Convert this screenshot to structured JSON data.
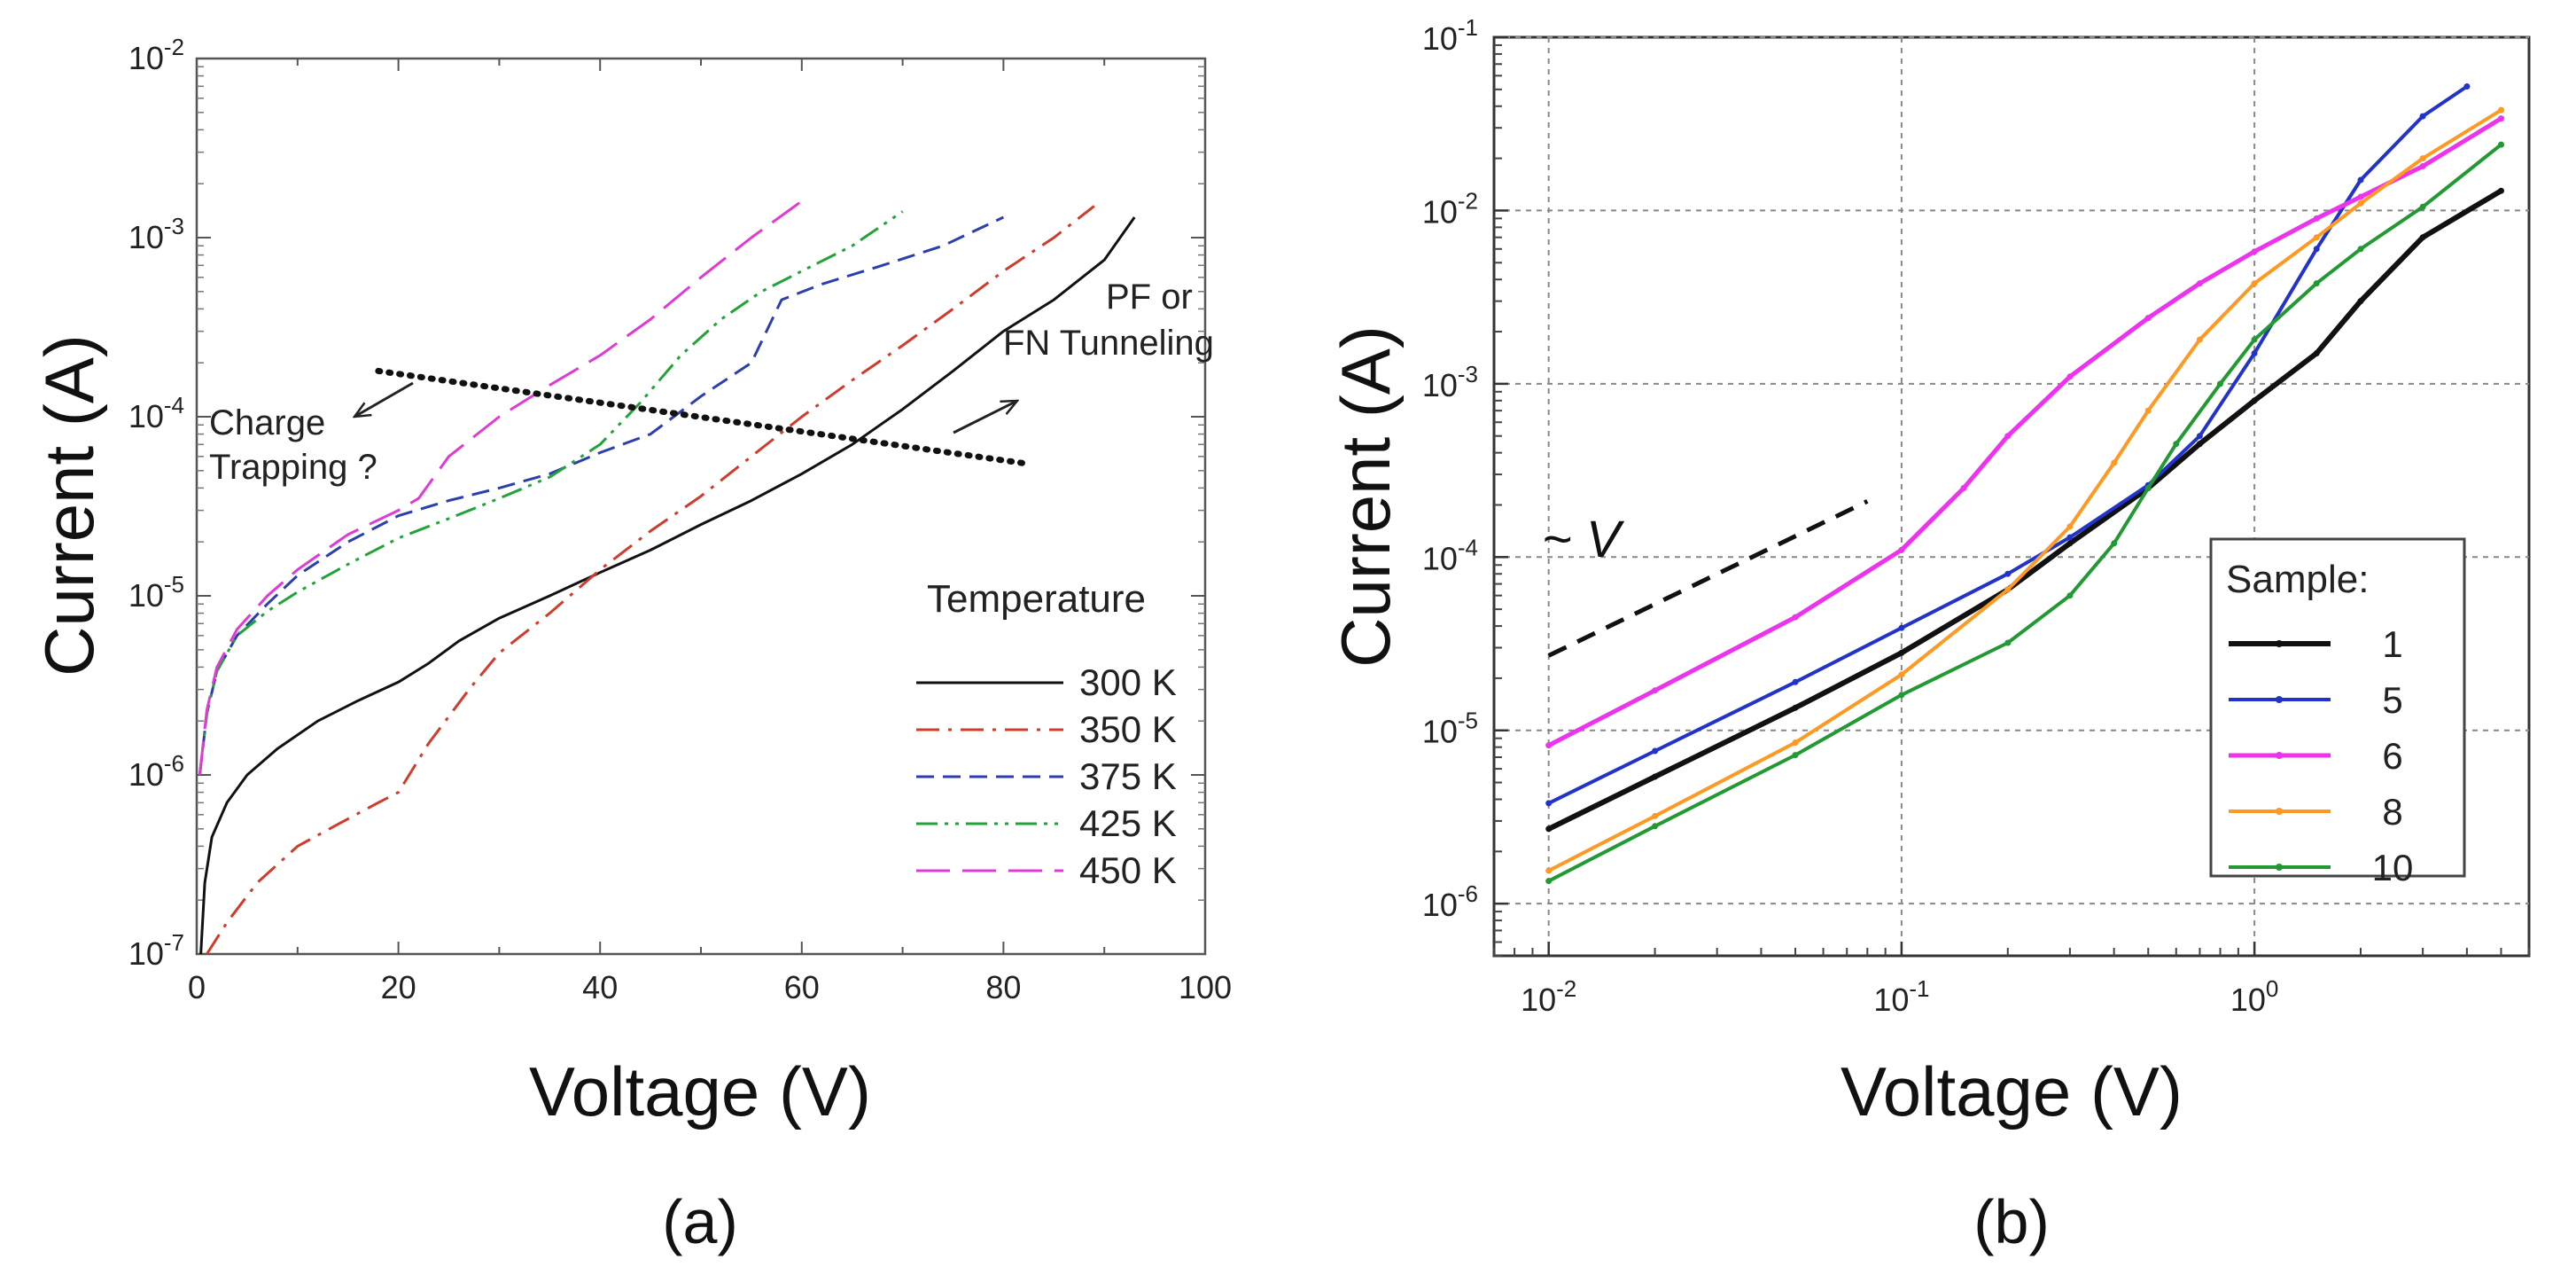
{
  "chart_data": [
    {
      "type": "line",
      "panel_caption": "(a)",
      "xlabel": "Voltage (V)",
      "ylabel": "Current (A)",
      "xscale": "linear",
      "yscale": "log",
      "xlim": [
        0,
        100
      ],
      "ylim": [
        1e-07,
        0.01
      ],
      "xticks": [
        "0",
        "20",
        "40",
        "60",
        "80",
        "100"
      ],
      "yticks": [
        {
          "base": "10",
          "exp": "-7"
        },
        {
          "base": "10",
          "exp": "-6"
        },
        {
          "base": "10",
          "exp": "-5"
        },
        {
          "base": "10",
          "exp": "-4"
        },
        {
          "base": "10",
          "exp": "-3"
        },
        {
          "base": "10",
          "exp": "-2"
        }
      ],
      "grid": false,
      "legend_title": "Temperature",
      "legend_position": "lower-right",
      "annotations": {
        "charge_line1": "Charge",
        "charge_line2": "Trapping ?",
        "pf_line1": "PF or",
        "pf_line2": "FN Tunneling"
      },
      "trend_line": {
        "x": [
          18,
          82
        ],
        "y": [
          0.00018,
          5.5e-05
        ]
      },
      "series": [
        {
          "name": "300 K",
          "color": "#111111",
          "dash": "solid",
          "x": [
            0.4,
            0.8,
            1.5,
            3,
            5,
            8,
            12,
            16,
            20,
            23,
            26,
            30,
            35,
            40,
            45,
            50,
            55,
            60,
            65,
            70,
            75,
            80,
            85,
            90,
            93
          ],
          "y": [
            1e-07,
            2.5e-07,
            4.5e-07,
            7e-07,
            1e-06,
            1.4e-06,
            2e-06,
            2.6e-06,
            3.3e-06,
            4.2e-06,
            5.6e-06,
            7.5e-06,
            1e-05,
            1.35e-05,
            1.8e-05,
            2.5e-05,
            3.4e-05,
            4.8e-05,
            7e-05,
            0.00011,
            0.00018,
            0.0003,
            0.00045,
            0.00075,
            0.0013
          ]
        },
        {
          "name": "350 K",
          "color": "#d23b2b",
          "dash": "dashdot",
          "x": [
            1,
            3,
            6,
            10,
            14,
            18,
            20,
            23,
            27,
            30,
            35,
            40,
            45,
            50,
            55,
            60,
            65,
            70,
            75,
            80,
            85,
            89
          ],
          "y": [
            1e-07,
            1.5e-07,
            2.5e-07,
            4e-07,
            5.3e-07,
            7e-07,
            8e-07,
            1.5e-06,
            3e-06,
            4.8e-06,
            8e-06,
            1.4e-05,
            2.3e-05,
            3.6e-05,
            6e-05,
            0.0001,
            0.00016,
            0.00025,
            0.0004,
            0.00065,
            0.001,
            0.0015
          ]
        },
        {
          "name": "375 K",
          "color": "#2b3fae",
          "dash": "dash",
          "x": [
            0.3,
            1,
            2,
            4,
            7,
            10,
            15,
            20,
            25,
            30,
            35,
            40,
            45,
            50,
            55,
            58,
            62,
            68,
            74,
            80
          ],
          "y": [
            1e-06,
            2.2e-06,
            3.8e-06,
            6e-06,
            9e-06,
            1.3e-05,
            2e-05,
            2.8e-05,
            3.4e-05,
            4e-05,
            4.8e-05,
            6.3e-05,
            8e-05,
            0.00013,
            0.0002,
            0.00045,
            0.00055,
            0.0007,
            0.0009,
            0.0013
          ]
        },
        {
          "name": "425 K",
          "color": "#22a33a",
          "dash": "dashdotdot",
          "x": [
            0.3,
            1,
            2,
            4,
            7,
            10,
            15,
            20,
            25,
            30,
            35,
            40,
            44,
            48,
            52,
            56,
            60,
            65,
            70
          ],
          "y": [
            1e-06,
            2.2e-06,
            3.8e-06,
            6e-06,
            8.2e-06,
            1.05e-05,
            1.5e-05,
            2.1e-05,
            2.7e-05,
            3.5e-05,
            4.6e-05,
            7e-05,
            0.00012,
            0.00022,
            0.00035,
            0.0005,
            0.00065,
            0.0009,
            0.0014
          ]
        },
        {
          "name": "450 K",
          "color": "#e03ad6",
          "dash": "longdash",
          "x": [
            0.3,
            1,
            2,
            4,
            7,
            10,
            15,
            20,
            22,
            25,
            30,
            35,
            40,
            45,
            50,
            55,
            60
          ],
          "y": [
            1e-06,
            2.3e-06,
            4e-06,
            6.5e-06,
            1e-05,
            1.4e-05,
            2.2e-05,
            3e-05,
            3.5e-05,
            6e-05,
            0.0001,
            0.00015,
            0.00022,
            0.00035,
            0.0006,
            0.001,
            0.0016
          ]
        }
      ]
    },
    {
      "type": "line",
      "panel_caption": "(b)",
      "xlabel": "Voltage (V)",
      "ylabel": "Current (A)",
      "xscale": "log",
      "yscale": "log",
      "xlim": [
        0.007,
        6
      ],
      "ylim": [
        5e-07,
        0.1
      ],
      "xticks": [
        {
          "base": "10",
          "exp": "-2"
        },
        {
          "base": "10",
          "exp": "-1"
        },
        {
          "base": "10",
          "exp": "0"
        }
      ],
      "yticks": [
        {
          "base": "10",
          "exp": "-6"
        },
        {
          "base": "10",
          "exp": "-5"
        },
        {
          "base": "10",
          "exp": "-4"
        },
        {
          "base": "10",
          "exp": "-3"
        },
        {
          "base": "10",
          "exp": "-2"
        },
        {
          "base": "10",
          "exp": "-1"
        }
      ],
      "grid": true,
      "legend_title": "Sample:",
      "legend_position": "lower-right",
      "annotations": {
        "slope_label": "~ V"
      },
      "reference_line": {
        "x": [
          0.01,
          0.08
        ],
        "y": [
          2.7e-05,
          0.00021
        ]
      },
      "series": [
        {
          "name": "1",
          "color": "#111111",
          "width": 6,
          "x": [
            0.01,
            0.02,
            0.05,
            0.1,
            0.2,
            0.3,
            0.5,
            0.7,
            1.0,
            1.5,
            2.0,
            3.0,
            5.0
          ],
          "y": [
            2.7e-06,
            5.4e-06,
            1.35e-05,
            2.8e-05,
            6.5e-05,
            0.00012,
            0.00025,
            0.00045,
            0.0008,
            0.0015,
            0.003,
            0.007,
            0.013
          ]
        },
        {
          "name": "5",
          "color": "#2233cc",
          "width": 4,
          "x": [
            0.01,
            0.02,
            0.05,
            0.1,
            0.2,
            0.3,
            0.5,
            0.7,
            1.0,
            1.5,
            2.0,
            3.0,
            4.0
          ],
          "y": [
            3.8e-06,
            7.6e-06,
            1.9e-05,
            3.9e-05,
            8e-05,
            0.00013,
            0.00026,
            0.0005,
            0.0015,
            0.006,
            0.015,
            0.035,
            0.052
          ]
        },
        {
          "name": "6",
          "color": "#ee33ee",
          "width": 5,
          "x": [
            0.01,
            0.02,
            0.05,
            0.1,
            0.15,
            0.2,
            0.3,
            0.5,
            0.7,
            1.0,
            1.5,
            2.0,
            3.0,
            5.0
          ],
          "y": [
            8.2e-06,
            1.7e-05,
            4.5e-05,
            0.00011,
            0.00025,
            0.0005,
            0.0011,
            0.0024,
            0.0038,
            0.0058,
            0.009,
            0.012,
            0.018,
            0.034
          ]
        },
        {
          "name": "8",
          "color": "#ff9922",
          "width": 4,
          "x": [
            0.01,
            0.02,
            0.05,
            0.1,
            0.2,
            0.3,
            0.4,
            0.5,
            0.7,
            1.0,
            1.5,
            2.0,
            3.0,
            5.0
          ],
          "y": [
            1.55e-06,
            3.2e-06,
            8.5e-06,
            2.1e-05,
            6.5e-05,
            0.00015,
            0.00035,
            0.0007,
            0.0018,
            0.0038,
            0.007,
            0.011,
            0.02,
            0.038
          ]
        },
        {
          "name": "10",
          "color": "#229933",
          "width": 4,
          "x": [
            0.01,
            0.02,
            0.05,
            0.1,
            0.2,
            0.3,
            0.4,
            0.5,
            0.6,
            0.8,
            1.0,
            1.5,
            2.0,
            3.0,
            5.0
          ],
          "y": [
            1.35e-06,
            2.8e-06,
            7.2e-06,
            1.6e-05,
            3.2e-05,
            6e-05,
            0.00012,
            0.00025,
            0.00045,
            0.001,
            0.0018,
            0.0038,
            0.006,
            0.0105,
            0.024
          ]
        }
      ]
    }
  ]
}
